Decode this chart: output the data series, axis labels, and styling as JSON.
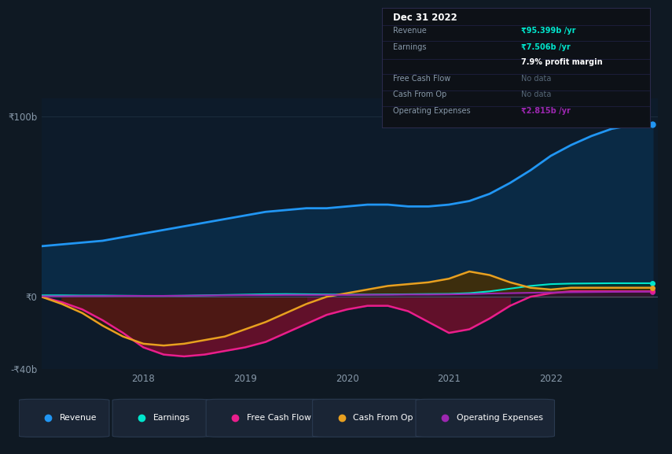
{
  "background_color": "#0f1923",
  "chart_bg_color": "#0d1b2a",
  "years": [
    2017.0,
    2017.2,
    2017.4,
    2017.6,
    2017.8,
    2018.0,
    2018.2,
    2018.4,
    2018.6,
    2018.8,
    2019.0,
    2019.2,
    2019.4,
    2019.6,
    2019.8,
    2020.0,
    2020.2,
    2020.4,
    2020.6,
    2020.8,
    2021.0,
    2021.2,
    2021.4,
    2021.6,
    2021.8,
    2022.0,
    2022.2,
    2022.4,
    2022.6,
    2022.8,
    2023.0
  ],
  "revenue": [
    28,
    29,
    30,
    31,
    33,
    35,
    37,
    39,
    41,
    43,
    45,
    47,
    48,
    49,
    49,
    50,
    51,
    51,
    50,
    50,
    51,
    53,
    57,
    63,
    70,
    78,
    84,
    89,
    93,
    95,
    95.4
  ],
  "earnings": [
    0.8,
    0.8,
    0.7,
    0.7,
    0.6,
    0.5,
    0.5,
    0.6,
    0.8,
    1.0,
    1.2,
    1.4,
    1.5,
    1.4,
    1.3,
    1.2,
    1.2,
    1.3,
    1.4,
    1.5,
    1.6,
    2.0,
    3.0,
    4.5,
    6.0,
    7.0,
    7.3,
    7.4,
    7.5,
    7.5,
    7.5
  ],
  "free_cash_flow": [
    0,
    -3,
    -7,
    -13,
    -20,
    -28,
    -32,
    -33,
    -32,
    -30,
    -28,
    -25,
    -20,
    -15,
    -10,
    -7,
    -5,
    -5,
    -8,
    -14,
    -20,
    -18,
    -12,
    -5,
    0,
    2,
    3,
    3,
    3,
    3,
    3
  ],
  "cash_from_op": [
    0,
    -4,
    -9,
    -16,
    -22,
    -26,
    -27,
    -26,
    -24,
    -22,
    -18,
    -14,
    -9,
    -4,
    0,
    2,
    4,
    6,
    7,
    8,
    10,
    14,
    12,
    8,
    5,
    4,
    5,
    5,
    5,
    5,
    5
  ],
  "operating_expenses": [
    0.3,
    0.3,
    0.4,
    0.4,
    0.5,
    0.5,
    0.5,
    0.6,
    0.7,
    0.8,
    0.9,
    0.9,
    1.0,
    1.0,
    1.0,
    1.0,
    1.1,
    1.1,
    1.2,
    1.2,
    1.3,
    1.5,
    1.8,
    2.0,
    2.2,
    2.4,
    2.5,
    2.6,
    2.7,
    2.8,
    2.815
  ],
  "ylim": [
    -40,
    110
  ],
  "yticks": [
    -40,
    0,
    100
  ],
  "ytick_labels": [
    "-₹40b",
    "₹0",
    "₹100b"
  ],
  "xticks": [
    2018,
    2019,
    2020,
    2021,
    2022
  ],
  "revenue_color": "#2196f3",
  "earnings_color": "#00e5cc",
  "free_cash_flow_color": "#e91e8c",
  "cash_from_op_color": "#e8a020",
  "operating_expenses_color": "#9c27b0",
  "legend_items": [
    {
      "label": "Revenue",
      "color": "#2196f3"
    },
    {
      "label": "Earnings",
      "color": "#00e5cc"
    },
    {
      "label": "Free Cash Flow",
      "color": "#e91e8c"
    },
    {
      "label": "Cash From Op",
      "color": "#e8a020"
    },
    {
      "label": "Operating Expenses",
      "color": "#9c27b0"
    }
  ]
}
